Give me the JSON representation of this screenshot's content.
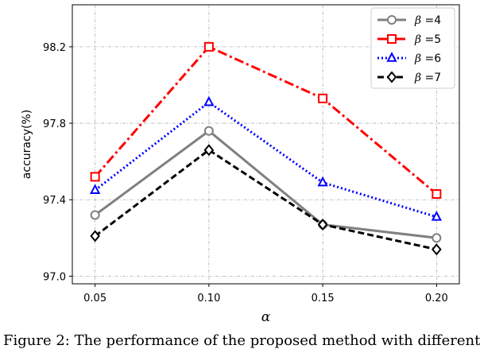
{
  "chart_data": {
    "type": "line",
    "title": "",
    "xlabel": "α",
    "ylabel": "accuracy(%)",
    "x": [
      0.05,
      0.1,
      0.15,
      0.2
    ],
    "x_tick_labels": [
      "0.05",
      "0.10",
      "0.15",
      "0.20"
    ],
    "xlim": [
      0.04,
      0.21
    ],
    "ylim": [
      96.96,
      98.42
    ],
    "y_ticks": [
      97.0,
      97.4,
      97.8,
      98.2
    ],
    "y_tick_labels": [
      "97.0",
      "97.4",
      "97.8",
      "98.2"
    ],
    "grid": true,
    "legend_position": "top-right",
    "series": [
      {
        "name": "β =4",
        "legend_symbol": "β",
        "legend_value": "=4",
        "color": "#808080",
        "line_style": "solid",
        "marker": "circle",
        "values": [
          97.32,
          97.76,
          97.27,
          97.2
        ]
      },
      {
        "name": "β =5",
        "legend_symbol": "β",
        "legend_value": "=5",
        "color": "#ff0000",
        "line_style": "dashdot",
        "marker": "square",
        "values": [
          97.52,
          98.2,
          97.93,
          97.43
        ]
      },
      {
        "name": "β =6",
        "legend_symbol": "β",
        "legend_value": "=6",
        "color": "#0000ff",
        "line_style": "dotted",
        "marker": "triangle",
        "values": [
          97.45,
          97.91,
          97.49,
          97.31
        ]
      },
      {
        "name": "β =7",
        "legend_symbol": "β",
        "legend_value": "=7",
        "color": "#000000",
        "line_style": "dashed",
        "marker": "diamond",
        "values": [
          97.21,
          97.66,
          97.27,
          97.14
        ]
      }
    ]
  },
  "caption": "Figure 2: The performance of the proposed method with different"
}
